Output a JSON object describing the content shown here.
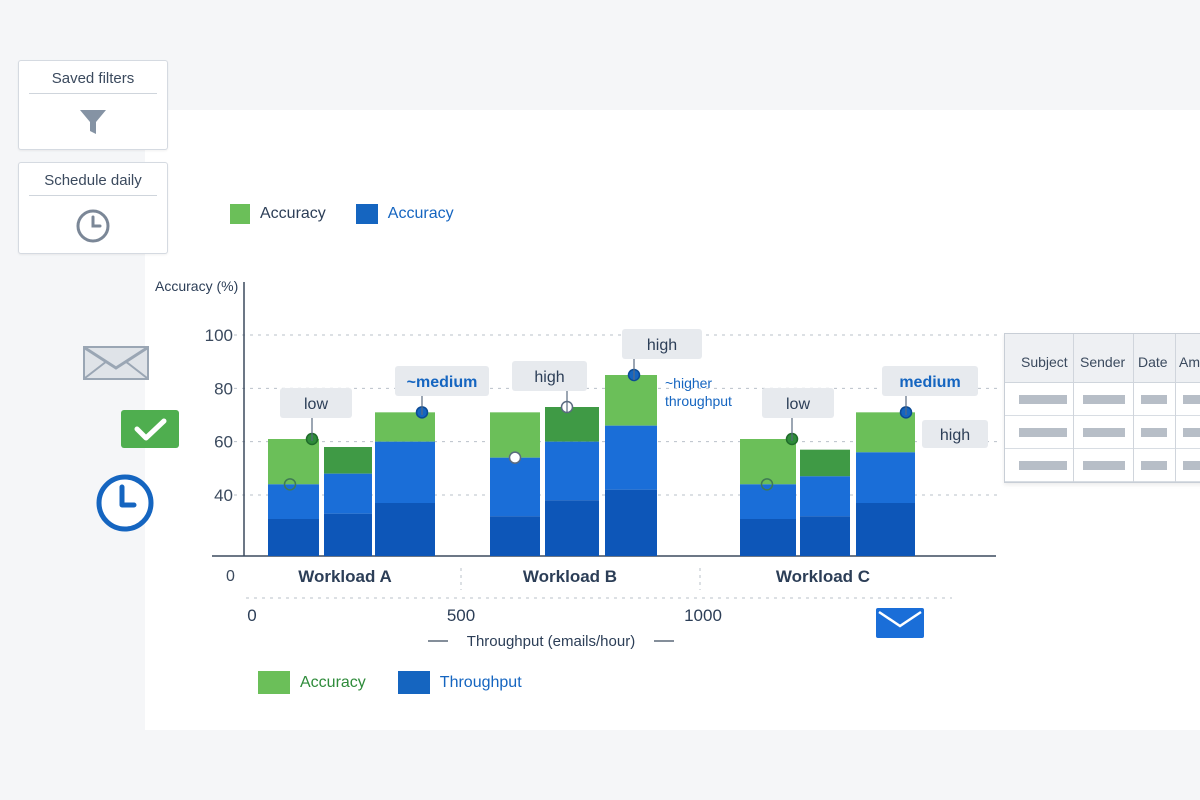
{
  "sidebar": {
    "saved_filters": {
      "label": "Saved filters",
      "icon": "filter-icon"
    },
    "schedule_daily": {
      "label": "Schedule daily",
      "icon": "clock-icon"
    }
  },
  "icons": [
    "envelope-icon",
    "check-icon",
    "clock-icon",
    "envelope-icon"
  ],
  "legend_top": [
    {
      "label": "Accuracy",
      "color": "#6bbf59"
    },
    {
      "label": "Accuracy",
      "color": "#1565c0"
    }
  ],
  "legend_bottom": [
    {
      "label": "Accuracy",
      "color": "#6bbf59"
    },
    {
      "label": "Throughput",
      "color": "#1565c0"
    }
  ],
  "table": {
    "headers": [
      "Subject",
      "Sender",
      "Date",
      "Am"
    ],
    "rows": 3
  },
  "chart_data": {
    "type": "bar",
    "stacked": true,
    "ylabel": "Accuracy (%)",
    "xlabel": "Throughput (emails/hour)",
    "ylim": [
      0,
      100
    ],
    "y_ticks": [
      40,
      60,
      80,
      100
    ],
    "x_tick_labels": [
      "0",
      "500",
      "1000"
    ],
    "y_origin_label": "0",
    "groups": [
      "Workload A",
      "Workload B",
      "Workload C"
    ],
    "colors": {
      "green_light": "#6bbf59",
      "green_dark": "#3f9a45",
      "blue_mid": "#1a6ed8",
      "blue_dark": "#0d56b8"
    },
    "bars": [
      {
        "group": "Workload A",
        "total": 61,
        "blue": 44,
        "dark": 31,
        "top_color": "green_light",
        "marker": {
          "value": 44,
          "style": "hollow"
        }
      },
      {
        "group": "Workload A",
        "total": 58,
        "blue": 48,
        "dark": 33,
        "top_color": "green_dark",
        "marker": {
          "value": 61,
          "style": "green"
        }
      },
      {
        "group": "Workload A",
        "total": 71,
        "blue": 60,
        "dark": 37,
        "top_color": "green_light",
        "marker": {
          "value": 71,
          "style": "blue"
        }
      },
      {
        "group": "Workload B",
        "total": 71,
        "blue": 54,
        "dark": 32,
        "top_color": "green_light",
        "marker": {
          "value": 54,
          "style": "hollow"
        }
      },
      {
        "group": "Workload B",
        "total": 73,
        "blue": 60,
        "dark": 38,
        "top_color": "green_dark",
        "marker": {
          "value": 73,
          "style": "hollow"
        }
      },
      {
        "group": "Workload B",
        "total": 85,
        "blue": 66,
        "dark": 42,
        "top_color": "green_light",
        "marker": {
          "value": 85,
          "style": "blue"
        }
      },
      {
        "group": "Workload C",
        "total": 61,
        "blue": 44,
        "dark": 31,
        "top_color": "green_light",
        "marker": {
          "value": 44,
          "style": "hollow"
        }
      },
      {
        "group": "Workload C",
        "total": 57,
        "blue": 47,
        "dark": 32,
        "top_color": "green_dark",
        "marker": {
          "value": 61,
          "style": "green"
        }
      },
      {
        "group": "Workload C",
        "total": 71,
        "blue": 56,
        "dark": 37,
        "top_color": "green_light",
        "marker": {
          "value": 71,
          "style": "blue"
        }
      }
    ],
    "annotations": [
      {
        "text": "low",
        "style": "dark"
      },
      {
        "text": "~medium",
        "style": "blue"
      },
      {
        "text": "high",
        "style": "dark"
      },
      {
        "text": "high",
        "style": "dark"
      },
      {
        "text": "~higher throughput",
        "style": "blue-plain"
      },
      {
        "text": "low",
        "style": "dark"
      },
      {
        "text": "medium",
        "style": "blue"
      },
      {
        "text": "high",
        "style": "dark"
      }
    ]
  }
}
